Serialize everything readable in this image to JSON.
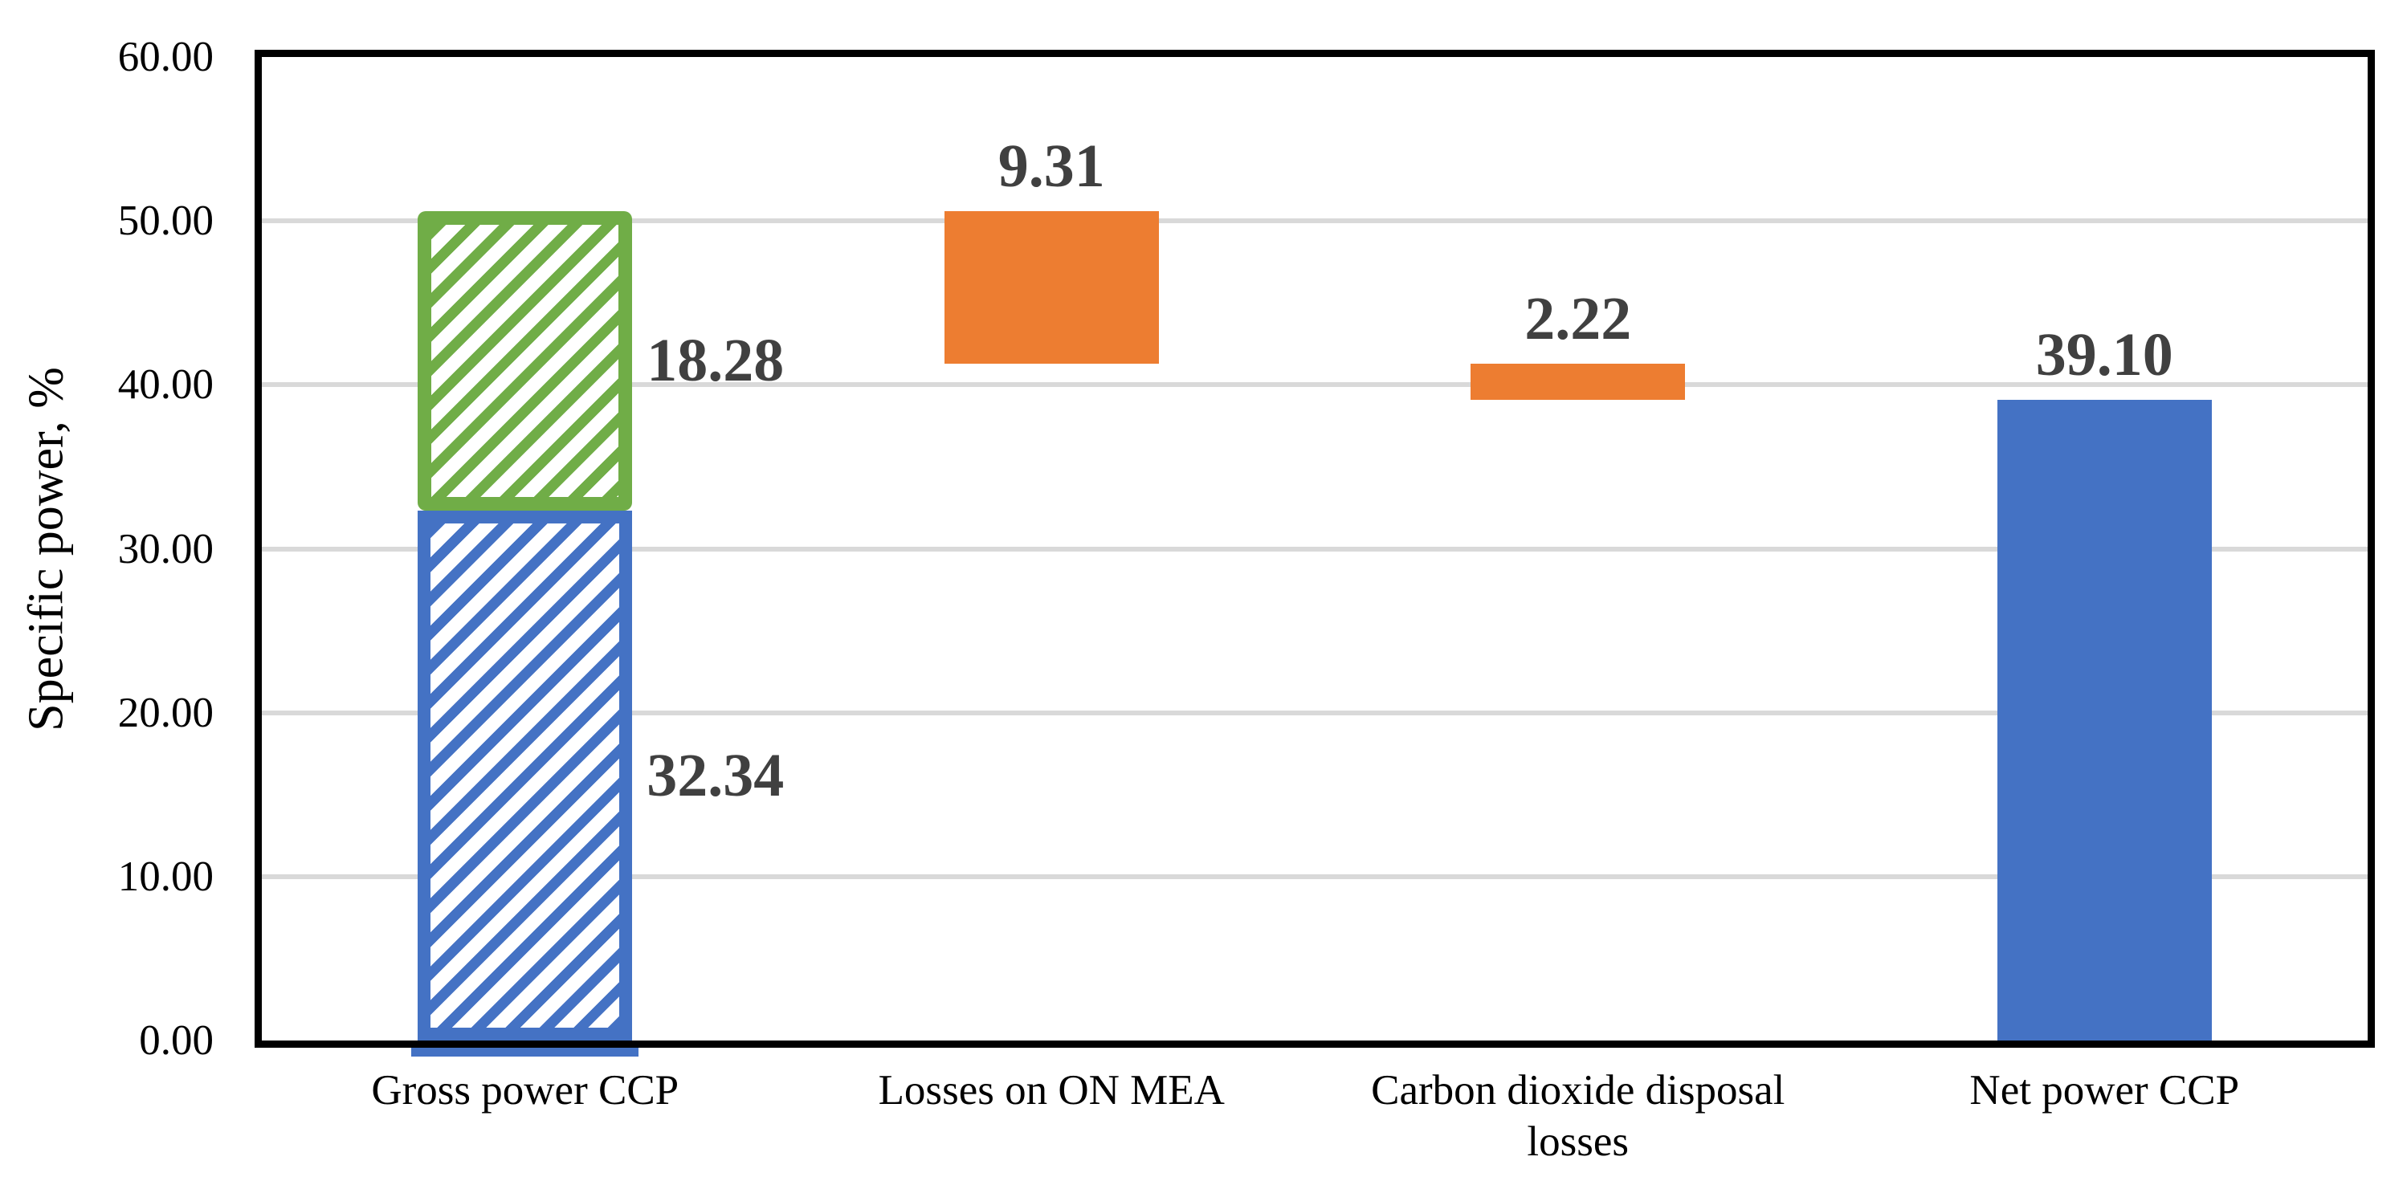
{
  "chart_data": {
    "type": "bar",
    "subtype": "waterfall",
    "title": "",
    "xlabel": "",
    "ylabel": "Specific power, %",
    "ylim": [
      0,
      60
    ],
    "ytick_step": 10,
    "ytick_labels": [
      "0.00",
      "10.00",
      "20.00",
      "30.00",
      "40.00",
      "50.00",
      "60.00"
    ],
    "grid": "horizontal-major-gridlines",
    "legend": "none",
    "categories": [
      "Gross power CCP",
      "Losses on ON MEA",
      "Carbon dioxide disposal losses",
      "Net power CCP"
    ],
    "bars": [
      {
        "category": "Gross power CCP",
        "segments": [
          {
            "value": 32.34,
            "from": 0,
            "to": 32.34,
            "label": "32.34",
            "fill": "hatch",
            "color": "blue",
            "label_placement": "right"
          },
          {
            "value": 18.28,
            "from": 32.34,
            "to": 50.62,
            "label": "18.28",
            "fill": "hatch",
            "color": "green",
            "label_placement": "right"
          }
        ]
      },
      {
        "category": "Losses on ON MEA",
        "segments": [
          {
            "value": 9.31,
            "from": 41.31,
            "to": 50.62,
            "label": "9.31",
            "fill": "solid",
            "color": "orange",
            "label_placement": "above"
          }
        ]
      },
      {
        "category": "Carbon dioxide disposal losses",
        "segments": [
          {
            "value": 2.22,
            "from": 39.1,
            "to": 41.31,
            "label": "2.22",
            "fill": "solid",
            "color": "orange",
            "label_placement": "above"
          }
        ]
      },
      {
        "category": "Net power CCP",
        "segments": [
          {
            "value": 39.1,
            "from": 0,
            "to": 39.1,
            "label": "39.10",
            "fill": "solid",
            "color": "blue",
            "label_placement": "above"
          }
        ]
      }
    ],
    "colors": {
      "blue": "#4472C4",
      "green": "#70AD47",
      "orange": "#ED7D31",
      "gridline": "#D9D9D9",
      "axis": "#000000",
      "data_label": "#404040",
      "tick_label": "#000000"
    }
  }
}
